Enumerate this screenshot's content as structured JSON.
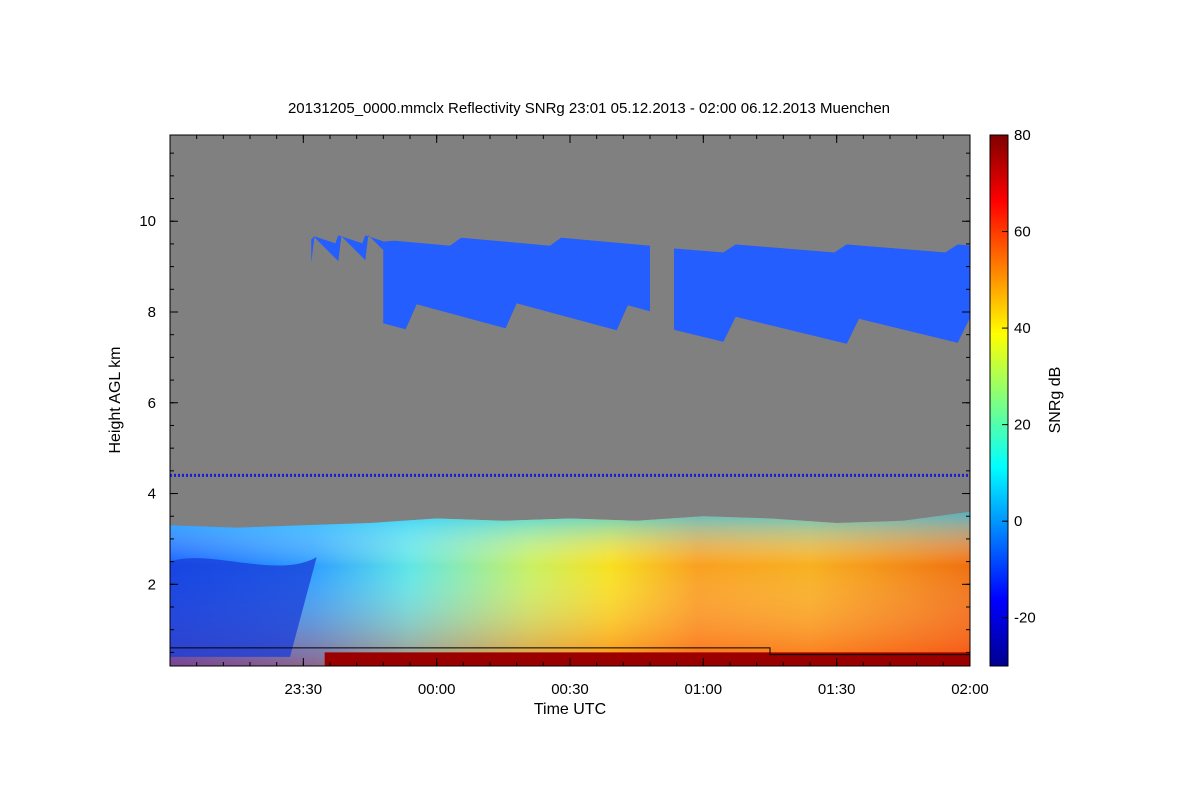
{
  "chart_data": {
    "type": "heatmap",
    "title": "20131205_0000.mmclx Reflectivity SNRg   23:01 05.12.2013 - 02:00 06.12.2013 Muenchen",
    "xlabel": "Time UTC",
    "ylabel": "Height AGL km",
    "colorbar_label": "SNRg dB",
    "x_range_hours": [
      -1.0,
      2.0
    ],
    "y_range_km": [
      0.2,
      11.9
    ],
    "x_ticks": [
      {
        "value": -0.5,
        "label": "23:30"
      },
      {
        "value": 0.0,
        "label": "00:00"
      },
      {
        "value": 0.5,
        "label": "00:30"
      },
      {
        "value": 1.0,
        "label": "01:00"
      },
      {
        "value": 1.5,
        "label": "01:30"
      },
      {
        "value": 2.0,
        "label": "02:00"
      }
    ],
    "y_ticks": [
      {
        "value": 2,
        "label": "2"
      },
      {
        "value": 4,
        "label": "4"
      },
      {
        "value": 6,
        "label": "6"
      },
      {
        "value": 8,
        "label": "8"
      },
      {
        "value": 10,
        "label": "10"
      }
    ],
    "colorbar_range_db": [
      -30,
      80
    ],
    "colorbar_ticks": [
      {
        "value": -20,
        "label": "-20"
      },
      {
        "value": 0,
        "label": "0"
      },
      {
        "value": 20,
        "label": "20"
      },
      {
        "value": 40,
        "label": "40"
      },
      {
        "value": 60,
        "label": "60"
      },
      {
        "value": 80,
        "label": "80"
      }
    ],
    "no_data_color": "#808080",
    "colormap": [
      "#00008f",
      "#0000ff",
      "#007fff",
      "#00ffff",
      "#7fff7f",
      "#ffff00",
      "#ff7f00",
      "#ff0000",
      "#7f0000"
    ],
    "features": {
      "boundary_layer_top_km": [
        [
          -1.0,
          3.3
        ],
        [
          -0.75,
          3.25
        ],
        [
          -0.5,
          3.3
        ],
        [
          -0.25,
          3.35
        ],
        [
          0.0,
          3.45
        ],
        [
          0.25,
          3.4
        ],
        [
          0.5,
          3.45
        ],
        [
          0.75,
          3.4
        ],
        [
          1.0,
          3.5
        ],
        [
          1.25,
          3.45
        ],
        [
          1.5,
          3.35
        ],
        [
          1.75,
          3.4
        ],
        [
          2.0,
          3.6
        ]
      ],
      "upper_cloud_segments": [
        {
          "start_h": -0.47,
          "end_h": -0.2,
          "base_km": 9.1,
          "top_km": 9.6
        },
        {
          "start_h": -0.2,
          "end_h": 0.8,
          "base_km": 7.6,
          "top_km": 9.55
        },
        {
          "start_h": 0.89,
          "end_h": 2.0,
          "base_km": 7.3,
          "top_km": 9.4
        }
      ],
      "interference_line_km": 4.4
    }
  }
}
